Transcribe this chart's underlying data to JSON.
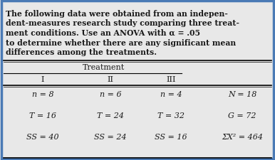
{
  "paragraph_lines": [
    "The following data were obtained from an indepen-",
    "dent-measures research study comparing three treat-",
    "ment conditions. Use an ANOVA with α = .05",
    "to determine whether there are any significant mean",
    "differences among the treatments."
  ],
  "table_header": "Treatment",
  "col_headers": [
    "I",
    "II",
    "III"
  ],
  "row1": [
    "n = 8",
    "n = 6",
    "n = 4",
    "N = 18"
  ],
  "row2": [
    "T = 16",
    "T = 24",
    "T = 32",
    "G = 72"
  ],
  "row3": [
    "SS = 40",
    "SS = 24",
    "SS = 16",
    "ΣX² = 464"
  ],
  "bg_color": "#e8e8e8",
  "border_color": "#4a7ab5",
  "text_color": "#1a1a1a",
  "fig_width": 3.86,
  "fig_height": 2.26,
  "dpi": 100
}
